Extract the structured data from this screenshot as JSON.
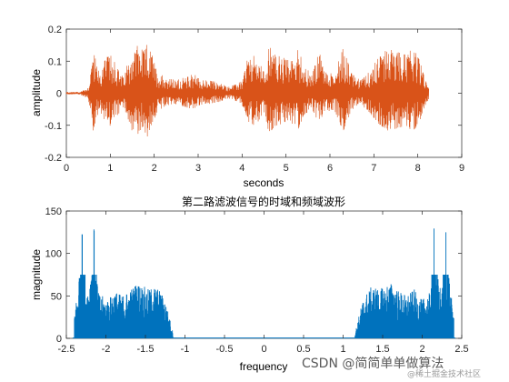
{
  "chart_data": [
    {
      "type": "line",
      "title": "",
      "xlabel": "seconds",
      "ylabel": "amplitude",
      "xlim": [
        0,
        9
      ],
      "ylim": [
        -0.2,
        0.2
      ],
      "xticks": [
        "0",
        "1",
        "2",
        "3",
        "4",
        "5",
        "6",
        "7",
        "8",
        "9"
      ],
      "yticks": [
        "-0.2",
        "-0.1",
        "0",
        "0.1",
        "0.2"
      ],
      "color": "#D95319",
      "series": [
        {
          "x": [
            0.0,
            0.3,
            0.5,
            0.55,
            0.6,
            0.75,
            0.9,
            1.0,
            1.3,
            1.5,
            1.65,
            1.75,
            1.85,
            1.95,
            2.1,
            2.3,
            2.5,
            2.7,
            2.9,
            3.1,
            3.3,
            3.5,
            3.7,
            3.9,
            4.0,
            4.1,
            4.3,
            4.5,
            4.6,
            4.75,
            4.95,
            5.1,
            5.25,
            5.45,
            5.6,
            5.75,
            5.9,
            6.1,
            6.3,
            6.5,
            6.7,
            6.9,
            7.1,
            7.3,
            7.5,
            7.7,
            7.9,
            8.05,
            8.15,
            8.25
          ],
          "values": [
            0.004,
            0.004,
            0.02,
            0.07,
            0.14,
            0.06,
            0.11,
            0.12,
            0.05,
            0.14,
            0.15,
            0.13,
            0.16,
            0.12,
            0.06,
            0.05,
            0.04,
            0.05,
            0.06,
            0.04,
            0.04,
            0.03,
            0.02,
            0.03,
            0.04,
            0.1,
            0.12,
            0.07,
            0.15,
            0.12,
            0.11,
            0.1,
            0.14,
            0.08,
            0.06,
            0.13,
            0.07,
            0.06,
            0.14,
            0.06,
            0.04,
            0.07,
            0.11,
            0.14,
            0.13,
            0.12,
            0.14,
            0.1,
            0.05,
            0.02
          ]
        }
      ]
    },
    {
      "type": "bar",
      "title": "第二路滤波信号的时域和频域波形",
      "xlabel": "frequency",
      "ylabel": "magnitude",
      "xlim": [
        -2.5,
        2.5
      ],
      "ylim": [
        0,
        150
      ],
      "xticks": [
        "-2.5",
        "-2",
        "-1.5",
        "-1",
        "-0.5",
        "0",
        "0.5",
        "1",
        "1.5",
        "2",
        "2.5"
      ],
      "yticks": [
        "0",
        "50",
        "100",
        "150"
      ],
      "color": "#0072BD",
      "x": [
        1.15,
        1.2,
        1.25,
        1.3,
        1.35,
        1.4,
        1.45,
        1.5,
        1.55,
        1.6,
        1.65,
        1.7,
        1.75,
        1.8,
        1.85,
        1.9,
        1.95,
        2.0,
        2.05,
        2.1,
        2.15,
        2.2,
        2.25,
        2.3,
        2.35,
        2.4
      ],
      "values": [
        5,
        22,
        38,
        45,
        50,
        52,
        48,
        50,
        53,
        55,
        52,
        47,
        45,
        42,
        45,
        48,
        40,
        38,
        42,
        45,
        130,
        60,
        45,
        125,
        50,
        25
      ]
    }
  ],
  "watermark": {
    "main": "CSDN @简简单单做算法",
    "sub": "@稀土掘金技术社区"
  }
}
